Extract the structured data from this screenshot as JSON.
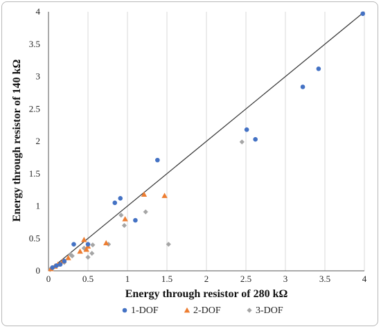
{
  "chart_data": {
    "type": "scatter",
    "xlabel": "Energy through resistor of 280 kΩ",
    "ylabel": "Energy through resistor of 140 kΩ",
    "xlim": [
      0,
      4
    ],
    "ylim": [
      0,
      4
    ],
    "xticks": [
      "0",
      "0.5",
      "1",
      "1.5",
      "2",
      "2.5",
      "3",
      "3.5",
      "4"
    ],
    "yticks": [
      "0",
      "0.5",
      "1",
      "1.5",
      "2",
      "2.5",
      "3",
      "3.5",
      "4"
    ],
    "grid": "vertical",
    "legend_position": "bottom",
    "reference_line": {
      "from": [
        0,
        0
      ],
      "to": [
        4,
        4
      ]
    },
    "series": [
      {
        "name": "1-DOF",
        "marker": "circle",
        "color": "#4472c4",
        "points": [
          [
            0.05,
            0.05
          ],
          [
            0.1,
            0.08
          ],
          [
            0.15,
            0.1
          ],
          [
            0.2,
            0.15
          ],
          [
            0.32,
            0.41
          ],
          [
            0.5,
            0.41
          ],
          [
            0.84,
            1.05
          ],
          [
            0.91,
            1.12
          ],
          [
            1.1,
            0.78
          ],
          [
            1.38,
            1.71
          ],
          [
            2.51,
            2.18
          ],
          [
            2.62,
            2.03
          ],
          [
            3.22,
            2.84
          ],
          [
            3.42,
            3.12
          ],
          [
            3.98,
            3.97
          ]
        ]
      },
      {
        "name": "2-DOF",
        "marker": "triangle",
        "color": "#ed7d31",
        "points": [
          [
            0.03,
            0.03
          ],
          [
            0.08,
            0.07
          ],
          [
            0.12,
            0.1
          ],
          [
            0.18,
            0.15
          ],
          [
            0.25,
            0.2
          ],
          [
            0.4,
            0.3
          ],
          [
            0.45,
            0.48
          ],
          [
            0.48,
            0.33
          ],
          [
            0.5,
            0.38
          ],
          [
            0.73,
            0.43
          ],
          [
            0.97,
            0.8
          ],
          [
            1.21,
            1.18
          ],
          [
            1.47,
            1.16
          ]
        ]
      },
      {
        "name": "3-DOF",
        "marker": "diamond",
        "color": "#a5a5a5",
        "points": [
          [
            0.02,
            0.02
          ],
          [
            0.06,
            0.05
          ],
          [
            0.1,
            0.08
          ],
          [
            0.2,
            0.13
          ],
          [
            0.28,
            0.25
          ],
          [
            0.3,
            0.23
          ],
          [
            0.45,
            0.35
          ],
          [
            0.5,
            0.21
          ],
          [
            0.55,
            0.27
          ],
          [
            0.56,
            0.4
          ],
          [
            0.76,
            0.41
          ],
          [
            0.92,
            0.86
          ],
          [
            0.96,
            0.7
          ],
          [
            1.23,
            0.91
          ],
          [
            1.52,
            0.41
          ],
          [
            2.45,
            1.99
          ]
        ]
      }
    ]
  }
}
